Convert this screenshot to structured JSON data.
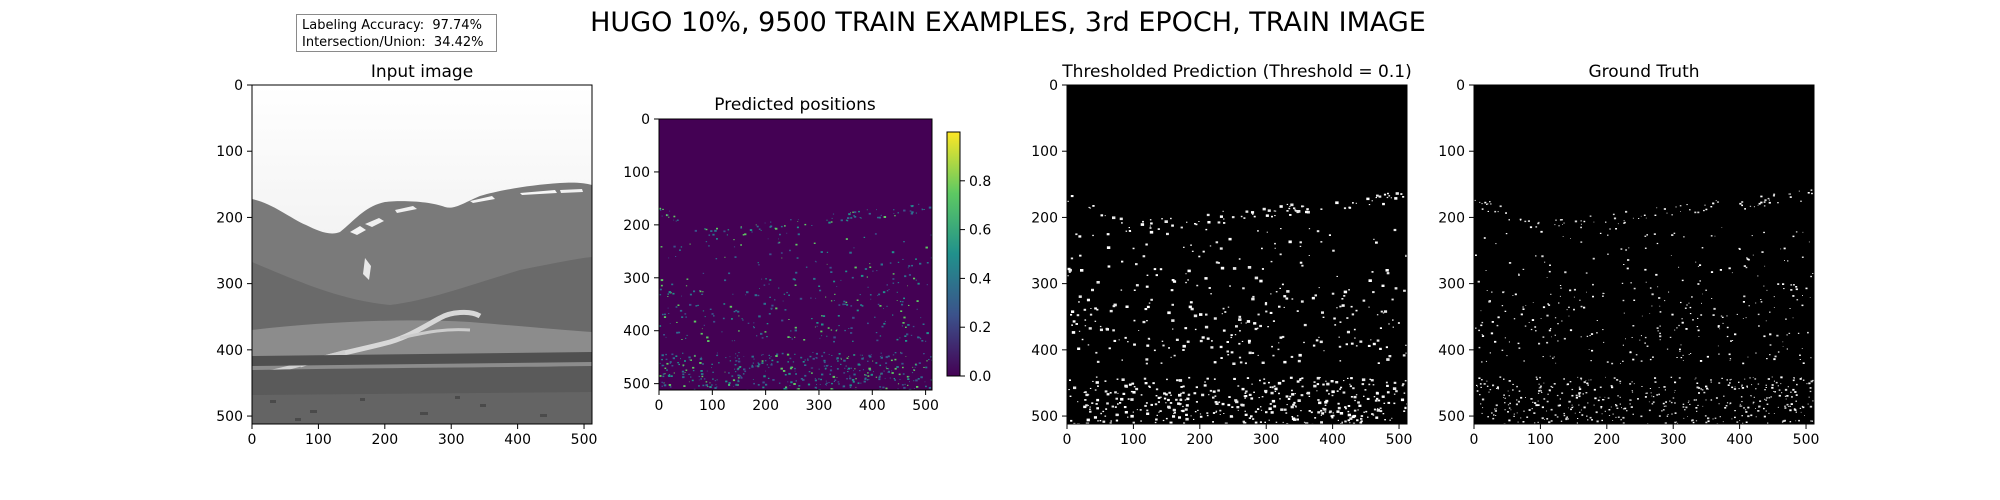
{
  "suptitle": "HUGO 10%, 9500 TRAIN EXAMPLES, 3rd EPOCH, TRAIN IMAGE",
  "stats": {
    "line1": "Labeling Accuracy:  97.74%",
    "line2": "Intersection/Union:  34.42%"
  },
  "chart_data": [
    {
      "type": "heatmap",
      "title": "Input image",
      "colormap": "gray",
      "xlim": [
        0,
        512
      ],
      "ylim": [
        512,
        0
      ],
      "xticks": [
        0,
        100,
        200,
        300,
        400,
        500
      ],
      "yticks": [
        0,
        100,
        200,
        300,
        400,
        500
      ]
    },
    {
      "type": "heatmap",
      "title": "Predicted positions",
      "colormap": "viridis",
      "xlim": [
        0,
        512
      ],
      "ylim": [
        512,
        0
      ],
      "xticks": [
        0,
        100,
        200,
        300,
        400,
        500
      ],
      "yticks": [
        0,
        100,
        200,
        300,
        400,
        500
      ],
      "colorbar": {
        "range": [
          0,
          1.0
        ],
        "ticks": [
          0.0,
          0.2,
          0.4,
          0.6,
          0.8
        ],
        "tick_labels": [
          "0.0",
          "0.2",
          "0.4",
          "0.6",
          "0.8"
        ]
      }
    },
    {
      "type": "heatmap",
      "title": "Thresholded Prediction (Threshold = 0.1)",
      "colormap": "binary",
      "threshold": 0.1,
      "xlim": [
        0,
        512
      ],
      "ylim": [
        512,
        0
      ],
      "xticks": [
        0,
        100,
        200,
        300,
        400,
        500
      ],
      "yticks": [
        0,
        100,
        200,
        300,
        400,
        500
      ]
    },
    {
      "type": "heatmap",
      "title": "Ground Truth",
      "colormap": "binary",
      "xlim": [
        0,
        512
      ],
      "ylim": [
        512,
        0
      ],
      "xticks": [
        0,
        100,
        200,
        300,
        400,
        500
      ],
      "yticks": [
        0,
        100,
        200,
        300,
        400,
        500
      ]
    }
  ]
}
